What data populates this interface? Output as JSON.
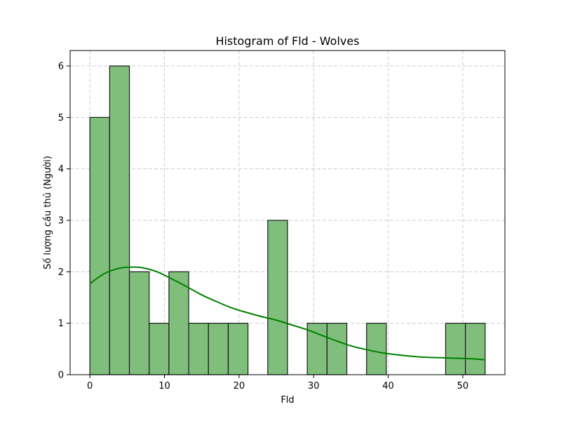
{
  "chart_data": {
    "type": "bar",
    "subtype": "histogram-with-kde",
    "title": "Histogram of Fld - Wolves",
    "xlabel": "Fld",
    "ylabel": "Số lượng cầu thủ (Người)",
    "xlim": [
      -2.65,
      55.65
    ],
    "ylim": [
      0,
      6.3
    ],
    "xticks": [
      0,
      10,
      20,
      30,
      40,
      50
    ],
    "yticks": [
      0,
      1,
      2,
      3,
      4,
      5,
      6
    ],
    "grid": true,
    "grid_style": "dashed",
    "bar_color": "#7fbf7b",
    "bar_edge_color": "#1a1a1a",
    "kde_color": "#008000",
    "bins": [
      {
        "x0": 0.0,
        "x1": 2.65,
        "count": 5
      },
      {
        "x0": 2.65,
        "x1": 5.3,
        "count": 6
      },
      {
        "x0": 5.3,
        "x1": 7.95,
        "count": 2
      },
      {
        "x0": 7.95,
        "x1": 10.6,
        "count": 1
      },
      {
        "x0": 10.6,
        "x1": 13.25,
        "count": 2
      },
      {
        "x0": 13.25,
        "x1": 15.9,
        "count": 1
      },
      {
        "x0": 15.9,
        "x1": 18.55,
        "count": 1
      },
      {
        "x0": 18.55,
        "x1": 21.2,
        "count": 1
      },
      {
        "x0": 21.2,
        "x1": 23.85,
        "count": 0
      },
      {
        "x0": 23.85,
        "x1": 26.5,
        "count": 3
      },
      {
        "x0": 26.5,
        "x1": 29.15,
        "count": 0
      },
      {
        "x0": 29.15,
        "x1": 31.8,
        "count": 1
      },
      {
        "x0": 31.8,
        "x1": 34.45,
        "count": 1
      },
      {
        "x0": 34.45,
        "x1": 37.1,
        "count": 0
      },
      {
        "x0": 37.1,
        "x1": 39.75,
        "count": 1
      },
      {
        "x0": 39.75,
        "x1": 42.4,
        "count": 0
      },
      {
        "x0": 42.4,
        "x1": 45.05,
        "count": 0
      },
      {
        "x0": 45.05,
        "x1": 47.7,
        "count": 0
      },
      {
        "x0": 47.7,
        "x1": 50.35,
        "count": 1
      },
      {
        "x0": 50.35,
        "x1": 53.0,
        "count": 1
      }
    ],
    "kde": {
      "x": [
        0,
        2,
        4,
        5.5,
        7,
        9,
        11,
        13,
        15,
        17,
        19,
        21,
        23,
        25,
        27,
        29,
        31,
        33,
        35,
        37,
        39,
        41,
        43,
        45,
        47,
        49,
        51,
        53
      ],
      "y": [
        1.77,
        1.97,
        2.07,
        2.09,
        2.08,
        2.0,
        1.86,
        1.71,
        1.55,
        1.42,
        1.3,
        1.21,
        1.13,
        1.06,
        0.97,
        0.88,
        0.77,
        0.66,
        0.56,
        0.49,
        0.43,
        0.39,
        0.36,
        0.34,
        0.33,
        0.32,
        0.31,
        0.29
      ]
    }
  }
}
